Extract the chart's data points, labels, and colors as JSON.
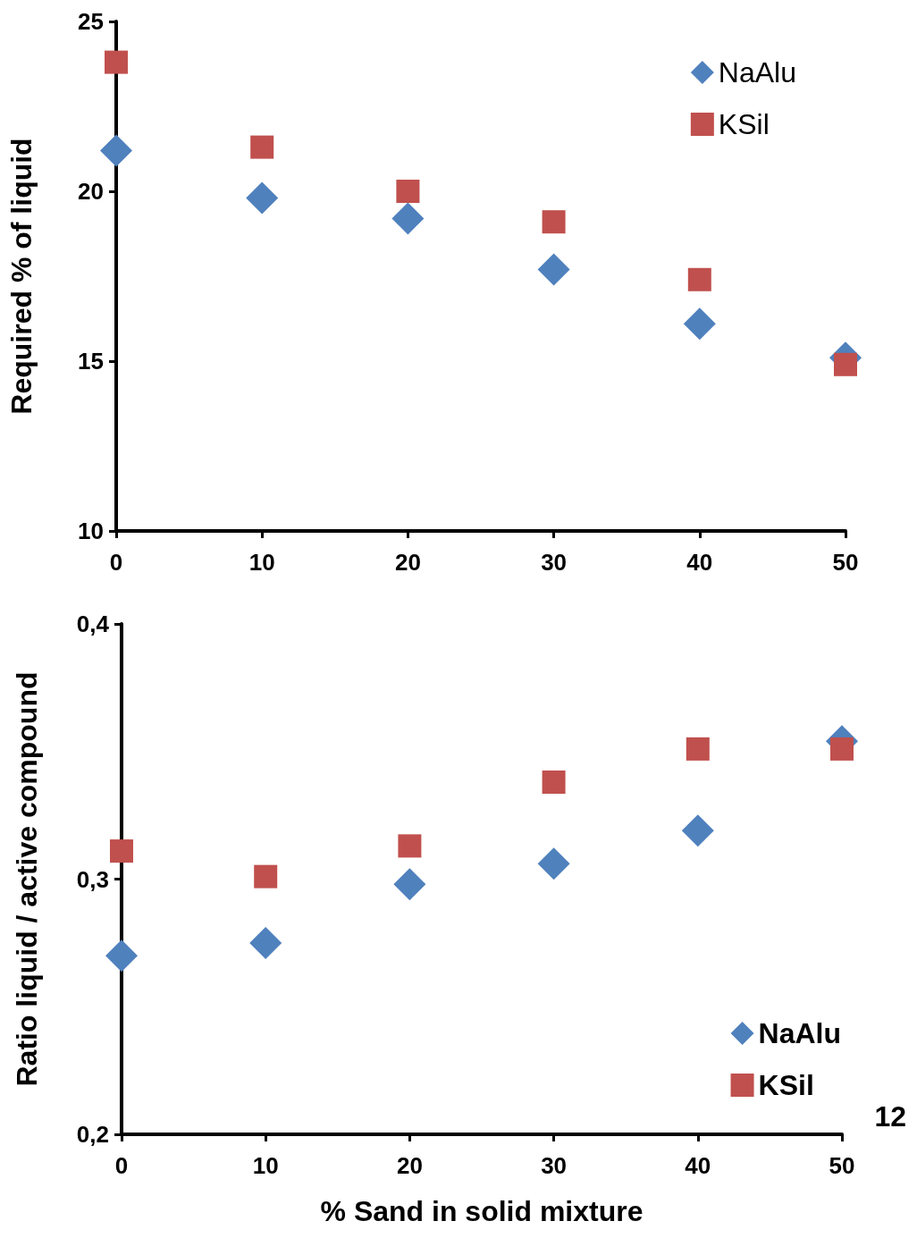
{
  "chart_data": [
    {
      "type": "scatter",
      "ylabel": "Required % of liquid",
      "x": [
        0,
        10,
        20,
        30,
        40,
        50
      ],
      "series": [
        {
          "name": "NaAlu",
          "color": "#4f81bd",
          "marker": "diamond",
          "values": [
            21.2,
            19.8,
            19.2,
            17.7,
            16.1,
            15.1
          ]
        },
        {
          "name": "KSil",
          "color": "#c0504d",
          "marker": "square",
          "values": [
            23.8,
            21.3,
            20.0,
            19.1,
            17.4,
            14.9
          ]
        }
      ],
      "xlim": [
        0,
        50
      ],
      "xticks": [
        0,
        10,
        20,
        30,
        40,
        50
      ],
      "ylim": [
        10,
        25
      ],
      "yticks": [
        10,
        15,
        20,
        25
      ],
      "grid": false,
      "legend": "top right"
    },
    {
      "type": "scatter",
      "xlabel": "% Sand in solid mixture",
      "ylabel": "Ratio liquid / active compound",
      "x": [
        0,
        10,
        20,
        30,
        40,
        50
      ],
      "series": [
        {
          "name": "NaAlu",
          "color": "#4f81bd",
          "marker": "diamond",
          "values": [
            0.27,
            0.275,
            0.298,
            0.306,
            0.319,
            0.354
          ]
        },
        {
          "name": "KSil",
          "color": "#c0504d",
          "marker": "square",
          "values": [
            0.311,
            0.301,
            0.313,
            0.338,
            0.351,
            0.351
          ]
        }
      ],
      "xlim": [
        0,
        50
      ],
      "xticks": [
        0,
        10,
        20,
        30,
        40,
        50
      ],
      "ylim": [
        0.2,
        0.4
      ],
      "yticks": [
        {
          "value": 0.2,
          "label": "0,2"
        },
        {
          "value": 0.3,
          "label": "0,3"
        },
        {
          "value": 0.4,
          "label": "0,4"
        }
      ],
      "grid": false,
      "legend": "bottom right",
      "annotations": [
        "12"
      ]
    }
  ]
}
